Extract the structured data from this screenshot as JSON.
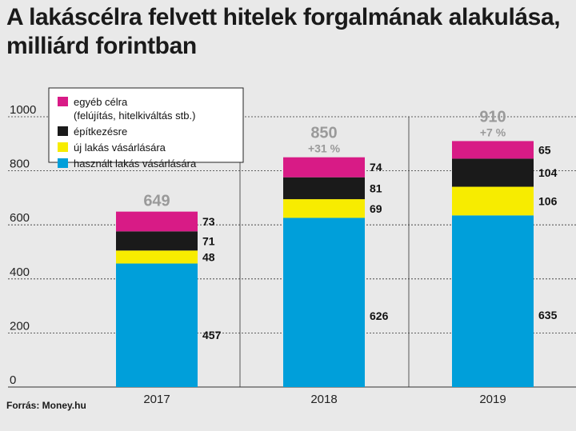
{
  "title": "A lakáscélra felvett hitelek forgalmának alakulása, milliárd forintban",
  "source": "Forrás: Money.hu",
  "colors": {
    "egyeb": "#d81b86",
    "epitkezes": "#1a1a1a",
    "uj": "#f7ec00",
    "hasznalt": "#009fda",
    "total_label": "#9a9a9a",
    "grid": "#333333"
  },
  "chart_data": {
    "type": "bar",
    "stacked": true,
    "title": "A lakáscélra felvett hitelek forgalmának alakulása, milliárd forintban",
    "xlabel": "",
    "ylabel": "",
    "categories": [
      "2017",
      "2018",
      "2019"
    ],
    "ylim": [
      0,
      1000
    ],
    "yticks": [
      "0",
      "200",
      "400",
      "600",
      "800",
      "1000"
    ],
    "grid": "horizontal dashed",
    "legend_position": "top-left",
    "series": [
      {
        "name": "használt lakás vásárlására",
        "key": "hasznalt",
        "values": [
          457,
          626,
          635
        ]
      },
      {
        "name": "új lakás vásárlására",
        "key": "uj",
        "values": [
          48,
          69,
          106
        ]
      },
      {
        "name": "építkezésre",
        "key": "epitkezes",
        "values": [
          71,
          81,
          104
        ]
      },
      {
        "name": "egyéb célra\n(felújítás, hitelkiváltás stb.)",
        "key": "egyeb",
        "values": [
          73,
          74,
          65
        ]
      }
    ],
    "totals": [
      "649",
      "850",
      "910"
    ],
    "changes": [
      "",
      "+31 %",
      "+7 %"
    ],
    "legend_order": [
      "egyeb",
      "epitkezes",
      "uj",
      "hasznalt"
    ]
  }
}
